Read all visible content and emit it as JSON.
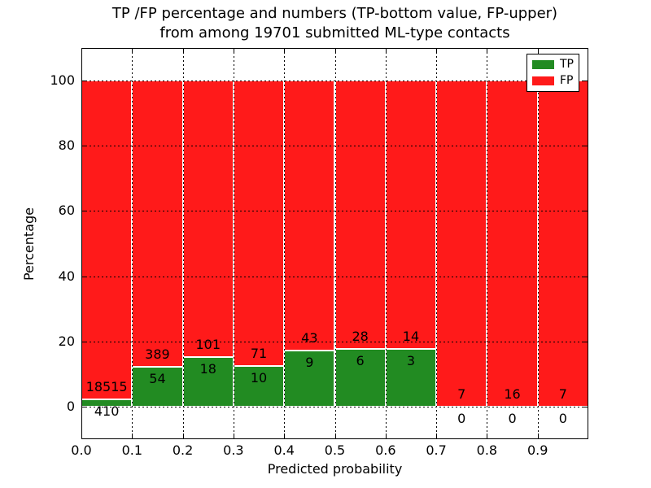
{
  "title": {
    "line1": "TP /FP percentage and numbers (TP-bottom value, FP-upper)",
    "line2": "from among 19701 submitted ML-type contacts"
  },
  "axes": {
    "ylabel": "Percentage",
    "xlabel": "Predicted probability"
  },
  "legend": {
    "items": [
      {
        "label": "TP",
        "color": "#228b22"
      },
      {
        "label": "FP",
        "color": "#ff1a1a"
      }
    ]
  },
  "chart_data": {
    "type": "bar",
    "stacked": true,
    "normalized_to_percent": true,
    "title": "TP /FP percentage and numbers (TP-bottom value, FP-upper) from among 19701 submitted ML-type contacts",
    "xlabel": "Predicted probability",
    "ylabel": "Percentage",
    "total_contacts": 19701,
    "categories": [
      "0.0-0.1",
      "0.1-0.2",
      "0.2-0.3",
      "0.3-0.4",
      "0.4-0.5",
      "0.5-0.6",
      "0.6-0.7",
      "0.7-0.8",
      "0.8-0.9",
      "0.9-1.0"
    ],
    "series": [
      {
        "name": "TP",
        "color": "#228b22",
        "values": [
          410,
          54,
          18,
          10,
          9,
          6,
          3,
          0,
          0,
          0
        ]
      },
      {
        "name": "FP",
        "color": "#ff1a1a",
        "values": [
          18515,
          389,
          101,
          71,
          43,
          28,
          14,
          7,
          16,
          7
        ]
      }
    ],
    "tp_percent": [
      2.17,
      12.19,
      15.13,
      12.35,
      17.31,
      17.65,
      17.65,
      0,
      0,
      0
    ],
    "xticks": [
      "0.0",
      "0.1",
      "0.2",
      "0.3",
      "0.4",
      "0.5",
      "0.6",
      "0.7",
      "0.8",
      "0.9"
    ],
    "yticks": [
      0,
      20,
      40,
      60,
      80,
      100
    ],
    "xlim": [
      0.0,
      1.0
    ],
    "ylim": [
      -10,
      110
    ],
    "grid": "dotted",
    "legend_position": "upper right"
  }
}
